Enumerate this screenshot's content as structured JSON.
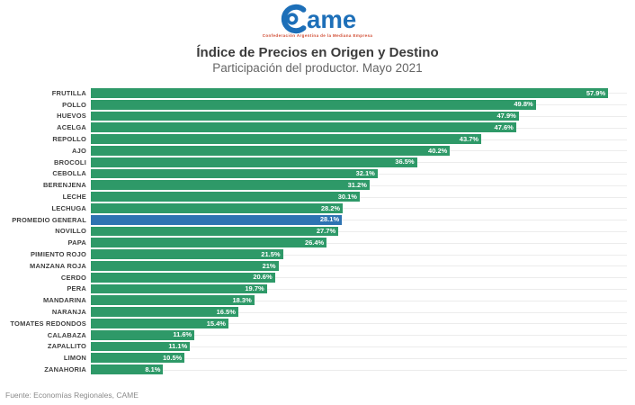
{
  "logo": {
    "brand": "ame",
    "tagline": "Confederación Argentina de la Mediana Empresa",
    "color": "#1d6fb8"
  },
  "footer": {
    "source": "Fuente: Economías Regionales, CAME"
  },
  "chart_data": {
    "type": "bar",
    "orientation": "horizontal",
    "title": "Índice de Precios en Origen y Destino",
    "subtitle": "Participación del productor. Mayo 2021",
    "categories": [
      "FRUTILLA",
      "POLLO",
      "HUEVOS",
      "ACELGA",
      "REPOLLO",
      "AJO",
      "BROCOLI",
      "CEBOLLA",
      "BERENJENA",
      "LECHE",
      "LECHUGA",
      "PROMEDIO GENERAL",
      "NOVILLO",
      "PAPA",
      "PIMIENTO ROJO",
      "MANZANA ROJA",
      "CERDO",
      "PERA",
      "MANDARINA",
      "NARANJA",
      "TOMATES REDONDOS",
      "CALABAZA",
      "ZAPALLITO",
      "LIMON",
      "ZANAHORIA"
    ],
    "values": [
      57.9,
      49.8,
      47.9,
      47.6,
      43.7,
      40.2,
      36.5,
      32.1,
      31.2,
      30.1,
      28.2,
      28.1,
      27.7,
      26.4,
      21.5,
      21,
      20.6,
      19.7,
      18.3,
      16.5,
      15.4,
      11.6,
      11.1,
      10.5,
      8.1
    ],
    "labels": [
      "57.9%",
      "49.8%",
      "47.9%",
      "47.6%",
      "43.7%",
      "40.2%",
      "36.5%",
      "32.1%",
      "31.2%",
      "30.1%",
      "28.2%",
      "28.1%",
      "27.7%",
      "26.4%",
      "21.5%",
      "21%",
      "20.6%",
      "19.7%",
      "18.3%",
      "16.5%",
      "15.4%",
      "11.6%",
      "11.1%",
      "10.5%",
      "8.1%"
    ],
    "highlight_category": "PROMEDIO GENERAL",
    "bar_color": "#2E9968",
    "highlight_color": "#2E73B2",
    "value_label_color": "#ffffff",
    "xlim": [
      0,
      60
    ],
    "grid": "horizontal-faint",
    "legend": "none"
  }
}
